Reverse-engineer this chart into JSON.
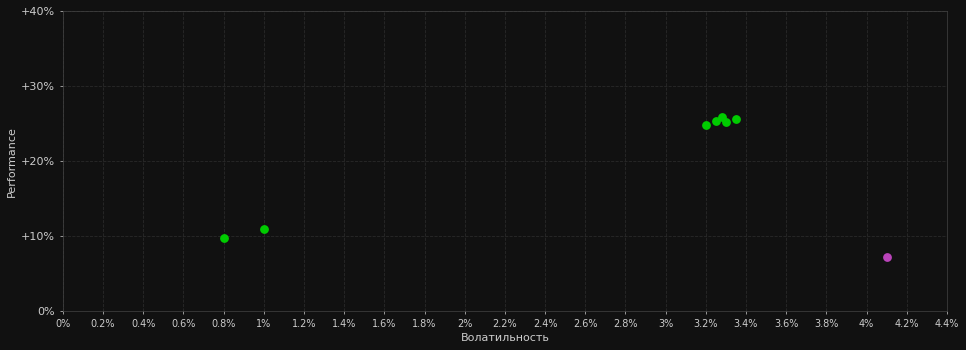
{
  "background_color": "#111111",
  "grid_color": "#2a2a2a",
  "xlabel": "Волатильность",
  "ylabel": "Performance",
  "xlim": [
    0,
    0.044
  ],
  "ylim": [
    0,
    0.4
  ],
  "xtick_vals": [
    0.0,
    0.002,
    0.004,
    0.006,
    0.008,
    0.01,
    0.012,
    0.014,
    0.016,
    0.018,
    0.02,
    0.022,
    0.024,
    0.026,
    0.028,
    0.03,
    0.032,
    0.034,
    0.036,
    0.038,
    0.04,
    0.042,
    0.044
  ],
  "xtick_labels": [
    "0%",
    "0.2%",
    "0.4%",
    "0.6%",
    "0.8%",
    "1%",
    "1.2%",
    "1.4%",
    "1.6%",
    "1.8%",
    "2%",
    "2.2%",
    "2.4%",
    "2.6%",
    "2.8%",
    "3%",
    "3.2%",
    "3.4%",
    "3.6%",
    "3.8%",
    "4%",
    "4.2%",
    "4.4%"
  ],
  "ytick_vals": [
    0.0,
    0.1,
    0.2,
    0.3,
    0.4
  ],
  "ytick_labels": [
    "0%",
    "+10%",
    "+20%",
    "+30%",
    "+40%"
  ],
  "green_points_x": [
    0.008,
    0.01,
    0.032,
    0.0325,
    0.0328,
    0.033,
    0.0335
  ],
  "green_points_y": [
    0.098,
    0.109,
    0.248,
    0.253,
    0.259,
    0.252,
    0.256
  ],
  "purple_points_x": [
    0.041
  ],
  "purple_points_y": [
    0.072
  ],
  "green_color": "#00cc00",
  "purple_color": "#bb44bb",
  "point_size": 28,
  "tick_fontsize": 7,
  "label_fontsize": 8,
  "tick_color": "#cccccc",
  "label_color": "#cccccc"
}
